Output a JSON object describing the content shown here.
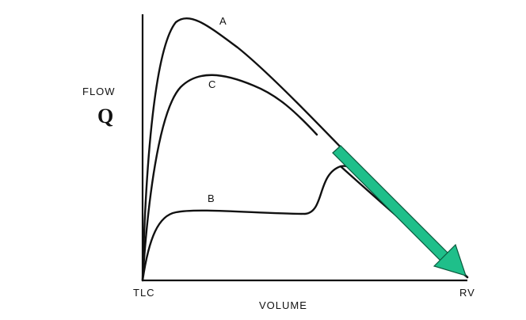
{
  "chart_data": {
    "type": "line",
    "title": "",
    "ylabel": "FLOW",
    "ylabel_symbol": "Q",
    "xlabel": "VOLUME",
    "x_tick_labels": [
      "TLC",
      "RV"
    ],
    "series": [
      {
        "name": "A"
      },
      {
        "name": "C"
      },
      {
        "name": "B"
      }
    ],
    "arrow_color": "#1fbf8a",
    "line_color": "#111111"
  }
}
